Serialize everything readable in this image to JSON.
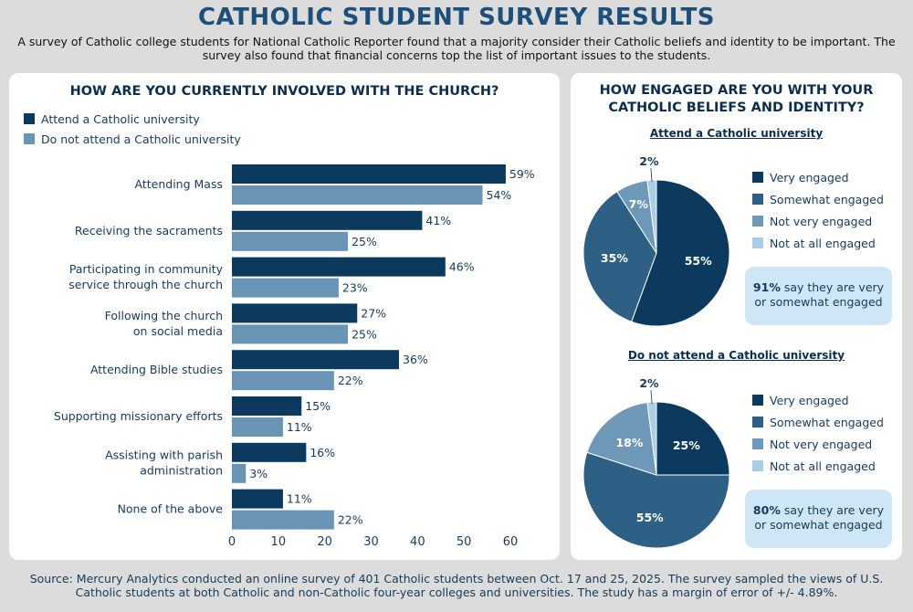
{
  "header": {
    "title": "CATHOLIC STUDENT SURVEY RESULTS",
    "subtitle": "A survey of Catholic college students for National Catholic Reporter found that a majority consider their Catholic beliefs and identity to be important. The survey also found that financial concerns top the list of important issues to the students."
  },
  "footer": {
    "source": "Source: Mercury Analytics conducted an online survey of 401 Catholic students between Oct. 17 and 25, 2025. The survey sampled the views of U.S. Catholic students at both Catholic and non-Catholic four-year colleges and universities. The study has a margin of error of +/- 4.89%."
  },
  "colors": {
    "dark": "#0b3a5e",
    "medium": "#2e5f85",
    "light": "#6e98b8",
    "lightest": "#a9cfe6",
    "bar_attend": "#0b3a5e",
    "bar_not_attend": "#6994b5"
  },
  "right": {
    "callout1_strong": "91%",
    "callout1_rest_a": " say they are very",
    "callout1_rest_b": "or somewhat engaged",
    "callout2_strong": "80%",
    "callout2_rest_a": " say they are very",
    "callout2_rest_b": "or somewhat engaged"
  },
  "chart_data": [
    {
      "type": "bar",
      "orientation": "horizontal",
      "title": "HOW ARE YOU CURRENTLY INVOLVED WITH THE CHURCH?",
      "categories": [
        [
          "Attending Mass"
        ],
        [
          "Receiving the sacraments"
        ],
        [
          "Participating in community",
          "service through the church"
        ],
        [
          "Following the church",
          "on social media"
        ],
        [
          "Attending Bible studies"
        ],
        [
          "Supporting missionary efforts"
        ],
        [
          "Assisting with parish",
          "administration"
        ],
        [
          "None of the above"
        ]
      ],
      "series": [
        {
          "name": "Attend a Catholic university",
          "values": [
            59,
            41,
            46,
            27,
            36,
            15,
            16,
            11
          ],
          "labels": [
            "59%",
            "41%",
            "46%",
            "27%",
            "36%",
            "15%",
            "16%",
            "11%"
          ]
        },
        {
          "name": "Do not attend a Catholic university",
          "values": [
            54,
            25,
            23,
            25,
            22,
            11,
            3,
            22
          ],
          "labels": [
            "54%",
            "25%",
            "23%",
            "25%",
            "22%",
            "11%",
            "3%",
            "22%"
          ]
        }
      ],
      "xlim": [
        0,
        60
      ],
      "xticks": [
        "0",
        "10",
        "20",
        "30",
        "40",
        "50",
        "60"
      ],
      "xticks_values": [
        0,
        10,
        20,
        30,
        40,
        50,
        60
      ],
      "legend": "top-left"
    },
    {
      "type": "pie",
      "title": "HOW ENGAGED ARE YOU WITH YOUR CATHOLIC BELIEFS AND IDENTITY?",
      "subtitle": "Attend a Catholic university",
      "categories": [
        "Very engaged",
        "Somewhat engaged",
        "Not very engaged",
        "Not at all engaged"
      ],
      "values": [
        55,
        35,
        7,
        2
      ],
      "labels": [
        "55%",
        "35%",
        "7%",
        "2%"
      ]
    },
    {
      "type": "pie",
      "subtitle": "Do not attend a Catholic university",
      "categories": [
        "Very engaged",
        "Somewhat engaged",
        "Not very engaged",
        "Not at all engaged"
      ],
      "values": [
        25,
        55,
        18,
        2
      ],
      "labels": [
        "25%",
        "55%",
        "18%",
        "2%"
      ]
    }
  ]
}
